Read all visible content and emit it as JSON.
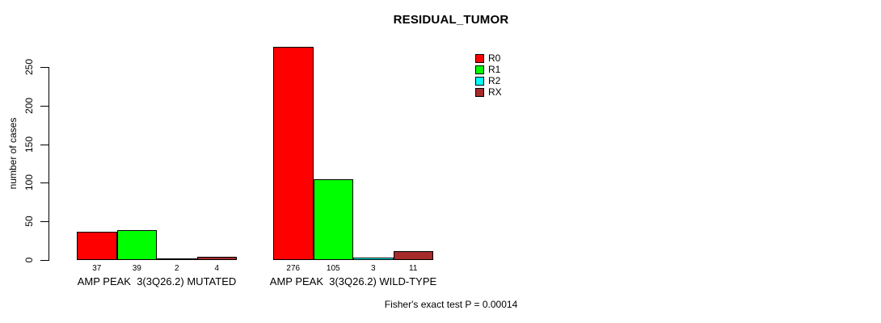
{
  "chart_data": {
    "type": "bar",
    "title": "RESIDUAL_TUMOR",
    "ylabel": "number of cases",
    "xlabel": "",
    "categories": [
      "AMP PEAK  3(3Q26.2) MUTATED",
      "AMP PEAK  3(3Q26.2) WILD-TYPE"
    ],
    "series": [
      {
        "name": "R0",
        "color": "#ff0000",
        "values": [
          37,
          276
        ]
      },
      {
        "name": "R1",
        "color": "#00ff00",
        "values": [
          39,
          105
        ]
      },
      {
        "name": "R2",
        "color": "#00ffff",
        "values": [
          2,
          3
        ]
      },
      {
        "name": "RX",
        "color": "#a52a2a",
        "values": [
          4,
          11
        ]
      }
    ],
    "yticks": [
      0,
      50,
      100,
      150,
      200,
      250
    ],
    "ylim": [
      0,
      250
    ],
    "grid": false,
    "legend_position": "top-right",
    "bar_value_labels_shown": true,
    "annotation": "Fisher's exact test P = 0.00014"
  }
}
